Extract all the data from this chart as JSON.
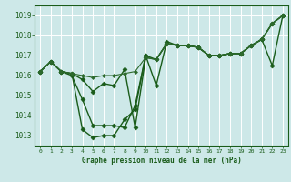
{
  "title": "Graphe pression niveau de la mer (hPa)",
  "bg_color": "#cde8e8",
  "grid_color": "#b0d4d4",
  "line_color": "#1a5c1a",
  "xlim": [
    -0.5,
    23.5
  ],
  "ylim": [
    1012.5,
    1019.5
  ],
  "yticks": [
    1013,
    1014,
    1015,
    1016,
    1017,
    1018,
    1019
  ],
  "xticks": [
    0,
    1,
    2,
    3,
    4,
    5,
    6,
    7,
    8,
    9,
    10,
    11,
    12,
    13,
    14,
    15,
    16,
    17,
    18,
    19,
    20,
    21,
    22,
    23
  ],
  "series": [
    {
      "x": [
        0,
        1,
        2,
        3,
        4,
        5,
        6,
        7,
        8,
        9,
        10,
        11,
        12,
        13,
        14,
        15,
        16,
        17,
        18,
        19,
        20,
        21,
        22,
        23
      ],
      "y": [
        1016.2,
        1016.7,
        1016.2,
        1016.1,
        1013.3,
        1012.9,
        1013.0,
        1013.0,
        1013.8,
        1014.3,
        1017.0,
        1015.5,
        1017.7,
        1017.5,
        1017.5,
        1017.4,
        1017.0,
        1017.0,
        1017.1,
        1017.1,
        1017.5,
        1017.8,
        1018.6,
        1019.0
      ],
      "color": "#1a5c1a",
      "lw": 1.0,
      "marker": "D",
      "ms": 2.5
    },
    {
      "x": [
        0,
        1,
        2,
        3,
        4,
        5,
        6,
        7,
        8,
        9,
        10,
        11,
        12,
        13,
        14,
        15,
        16,
        17,
        18,
        19,
        20,
        21,
        22,
        23
      ],
      "y": [
        1016.2,
        1016.7,
        1016.2,
        1016.0,
        1014.8,
        1013.5,
        1013.5,
        1013.5,
        1013.4,
        1014.5,
        1017.0,
        1016.8,
        1017.6,
        1017.5,
        1017.5,
        1017.4,
        1017.0,
        1017.0,
        1017.1,
        1017.1,
        1017.5,
        1017.8,
        1018.6,
        1019.0
      ],
      "color": "#1a5c1a",
      "lw": 1.0,
      "marker": "D",
      "ms": 2.5
    },
    {
      "x": [
        0,
        1,
        2,
        3,
        4,
        5,
        6,
        7,
        8,
        9,
        10,
        11,
        12,
        13,
        14,
        15,
        16,
        17,
        18,
        19,
        20,
        21,
        22,
        23
      ],
      "y": [
        1016.2,
        1016.7,
        1016.2,
        1016.1,
        1015.8,
        1015.2,
        1015.6,
        1015.5,
        1016.3,
        1013.4,
        1016.9,
        1016.8,
        1017.6,
        1017.5,
        1017.5,
        1017.4,
        1017.0,
        1017.0,
        1017.1,
        1017.1,
        1017.5,
        1017.8,
        1016.5,
        1019.0
      ],
      "color": "#1a5c1a",
      "lw": 1.0,
      "marker": "D",
      "ms": 2.5
    },
    {
      "x": [
        0,
        1,
        2,
        3,
        4,
        5,
        6,
        7,
        8,
        9,
        10,
        11,
        12,
        13,
        14,
        15,
        16,
        17,
        18,
        19,
        20,
        21,
        22,
        23
      ],
      "y": [
        1016.2,
        1016.7,
        1016.2,
        1016.1,
        1016.0,
        1015.9,
        1016.0,
        1016.0,
        1016.1,
        1016.2,
        1016.9,
        1016.8,
        1017.6,
        1017.5,
        1017.5,
        1017.4,
        1017.0,
        1017.0,
        1017.1,
        1017.1,
        1017.5,
        1017.8,
        1018.6,
        1019.0
      ],
      "color": "#2d6a2d",
      "lw": 0.8,
      "marker": "D",
      "ms": 2.0
    }
  ]
}
